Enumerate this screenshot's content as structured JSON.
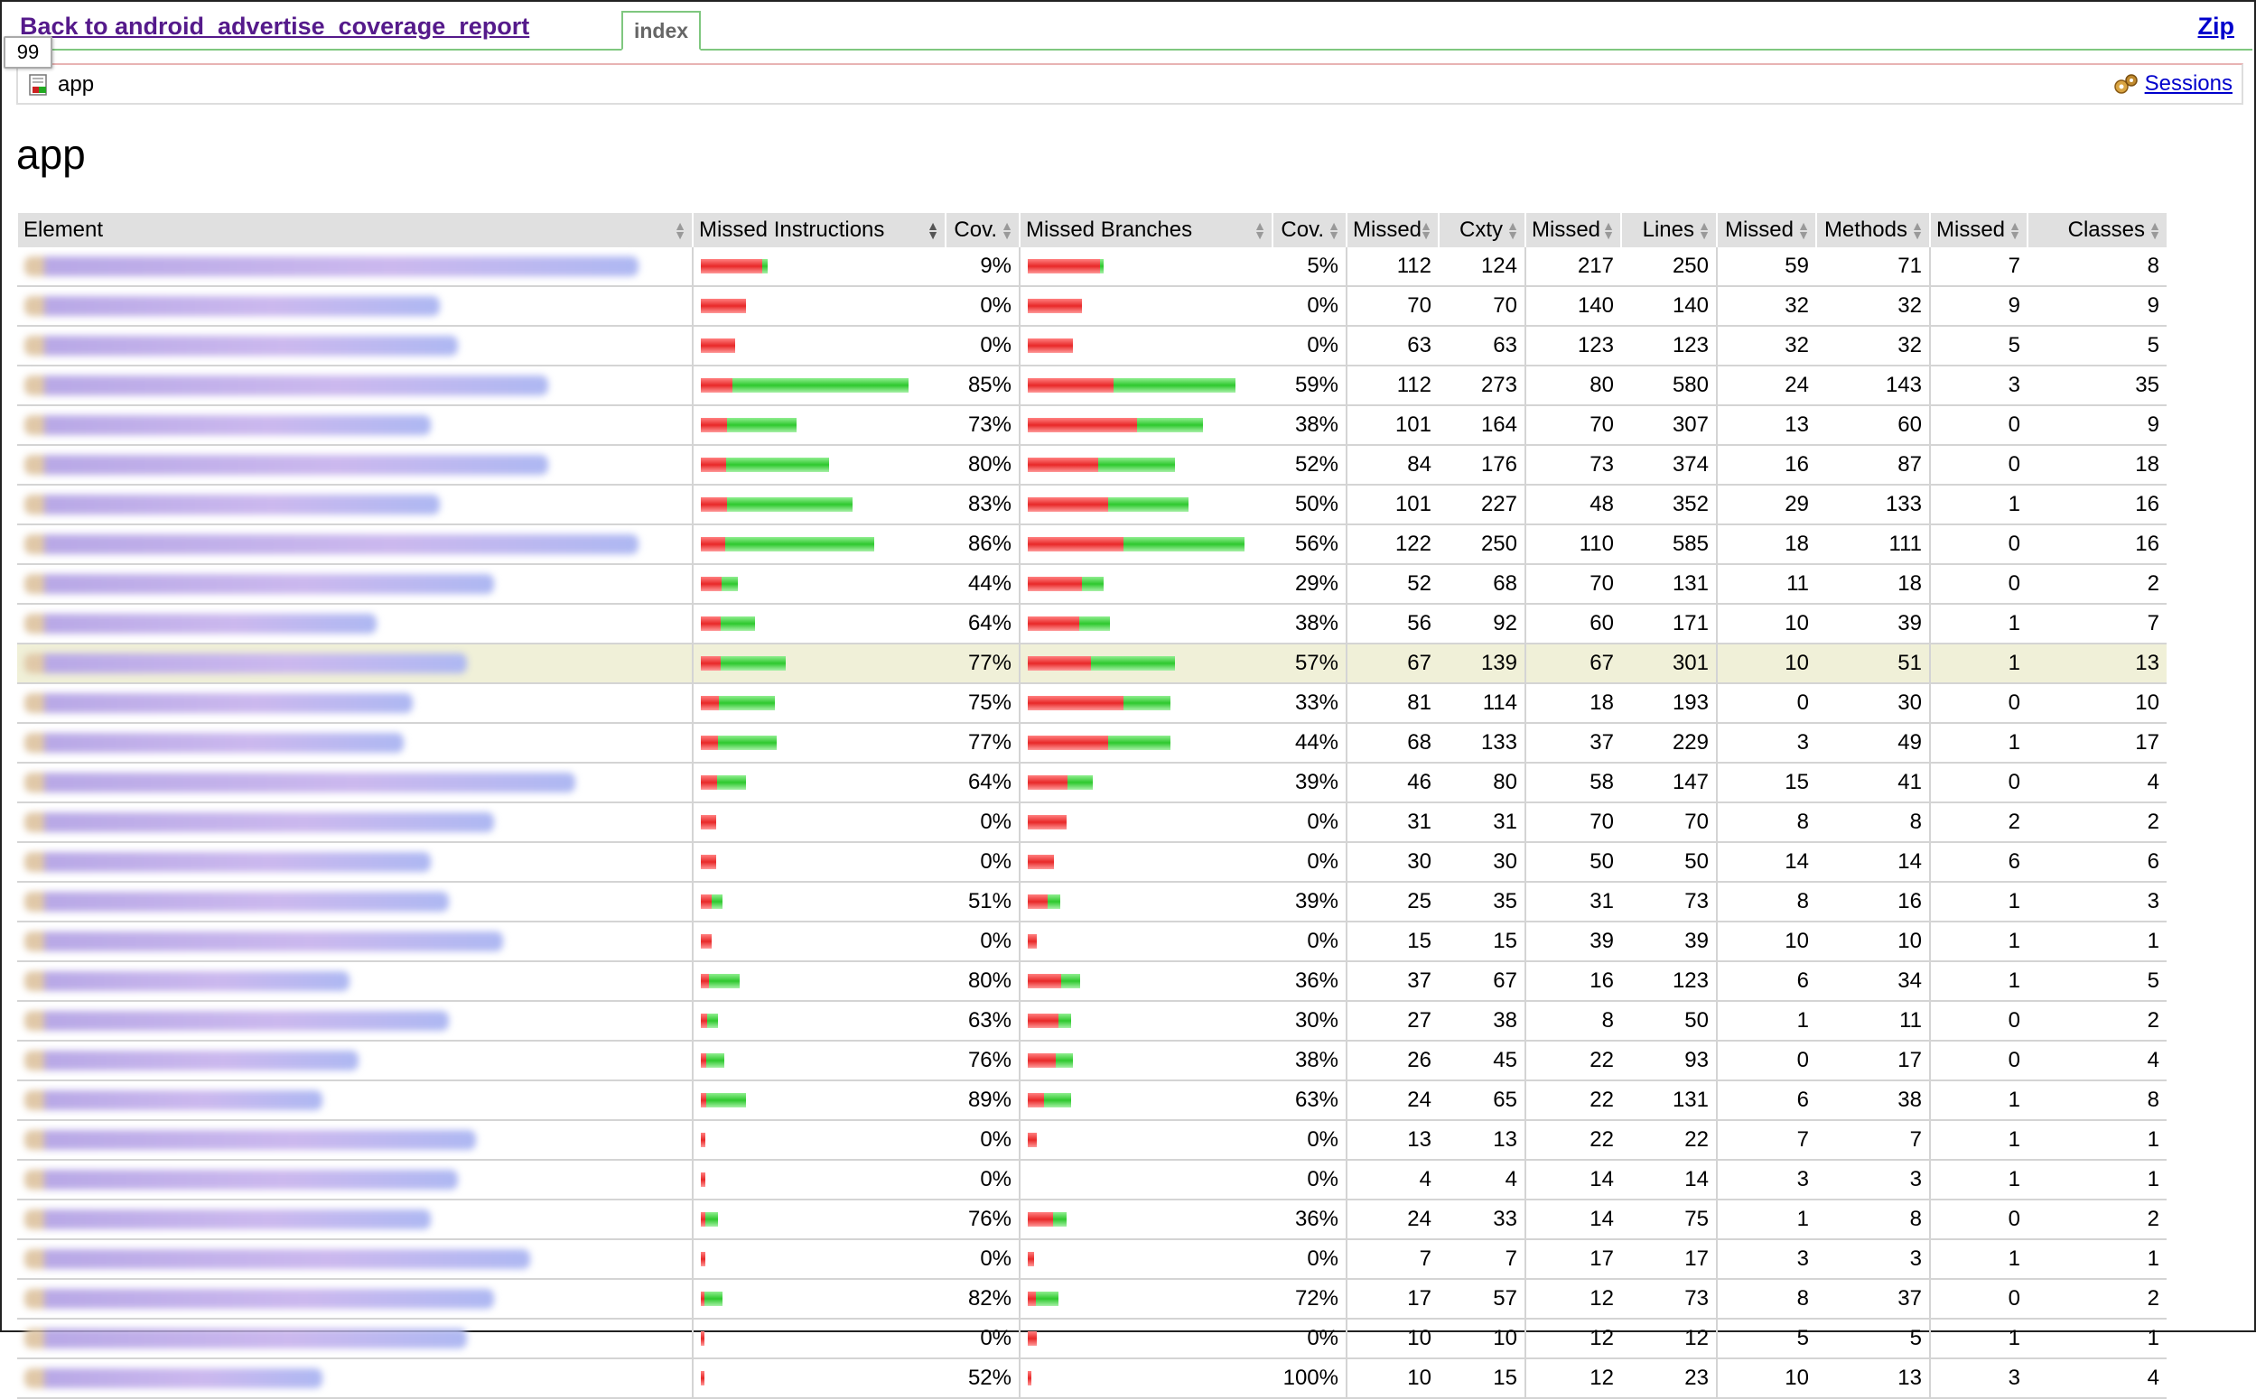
{
  "header": {
    "back_link": "Back to android_advertise_coverage_report",
    "tab": "index",
    "zip": "Zip",
    "tooltip": "99"
  },
  "breadcrumb": {
    "label": "app",
    "sessions": "Sessions"
  },
  "title": "app",
  "columns": [
    "Element",
    "Missed Instructions",
    "Cov.",
    "Missed Branches",
    "Cov.",
    "Missed",
    "Cxty",
    "Missed",
    "Lines",
    "Missed",
    "Methods",
    "Missed",
    "Classes"
  ],
  "icons": {
    "breadcrumb": "report-icon",
    "sessions": "sessions-icon",
    "sorted_column": "sort-down-icon"
  },
  "colors": {
    "missed": "#e82828",
    "covered": "#2ec82e",
    "highlight": "#f0f0d8"
  },
  "rows": [
    {
      "instr_missed": 0.91,
      "instr_total": 0.31,
      "instr_cov": "9%",
      "br_missed": 0.95,
      "br_total": 0.35,
      "br_cov": "5%",
      "cx_missed": "112",
      "cx": "124",
      "ln_missed": "217",
      "ln": "250",
      "mt_missed": "59",
      "mt": "71",
      "cl_missed": "7",
      "cl": "8"
    },
    {
      "instr_missed": 1.0,
      "instr_total": 0.21,
      "instr_cov": "0%",
      "br_missed": 1.0,
      "br_total": 0.25,
      "br_cov": "0%",
      "cx_missed": "70",
      "cx": "70",
      "ln_missed": "140",
      "ln": "140",
      "mt_missed": "32",
      "mt": "32",
      "cl_missed": "9",
      "cl": "9"
    },
    {
      "instr_missed": 1.0,
      "instr_total": 0.16,
      "instr_cov": "0%",
      "br_missed": 1.0,
      "br_total": 0.21,
      "br_cov": "0%",
      "cx_missed": "63",
      "cx": "63",
      "ln_missed": "123",
      "ln": "123",
      "mt_missed": "32",
      "mt": "32",
      "cl_missed": "5",
      "cl": "5"
    },
    {
      "instr_missed": 0.15,
      "instr_total": 0.96,
      "instr_cov": "85%",
      "br_missed": 0.41,
      "br_total": 0.96,
      "br_cov": "59%",
      "cx_missed": "112",
      "cx": "273",
      "ln_missed": "80",
      "ln": "580",
      "mt_missed": "24",
      "mt": "143",
      "cl_missed": "3",
      "cl": "35"
    },
    {
      "instr_missed": 0.27,
      "instr_total": 0.44,
      "instr_cov": "73%",
      "br_missed": 0.62,
      "br_total": 0.81,
      "br_cov": "38%",
      "cx_missed": "101",
      "cx": "164",
      "ln_missed": "70",
      "ln": "307",
      "mt_missed": "13",
      "mt": "60",
      "cl_missed": "0",
      "cl": "9"
    },
    {
      "instr_missed": 0.2,
      "instr_total": 0.59,
      "instr_cov": "80%",
      "br_missed": 0.48,
      "br_total": 0.68,
      "br_cov": "52%",
      "cx_missed": "84",
      "cx": "176",
      "ln_missed": "73",
      "ln": "374",
      "mt_missed": "16",
      "mt": "87",
      "cl_missed": "0",
      "cl": "18"
    },
    {
      "instr_missed": 0.17,
      "instr_total": 0.7,
      "instr_cov": "83%",
      "br_missed": 0.5,
      "br_total": 0.74,
      "br_cov": "50%",
      "cx_missed": "101",
      "cx": "227",
      "ln_missed": "48",
      "ln": "352",
      "mt_missed": "29",
      "mt": "133",
      "cl_missed": "1",
      "cl": "16"
    },
    {
      "instr_missed": 0.14,
      "instr_total": 0.8,
      "instr_cov": "86%",
      "br_missed": 0.44,
      "br_total": 1.0,
      "br_cov": "56%",
      "cx_missed": "122",
      "cx": "250",
      "ln_missed": "110",
      "ln": "585",
      "mt_missed": "18",
      "mt": "111",
      "cl_missed": "0",
      "cl": "16"
    },
    {
      "instr_missed": 0.56,
      "instr_total": 0.17,
      "instr_cov": "44%",
      "br_missed": 0.71,
      "br_total": 0.35,
      "br_cov": "29%",
      "cx_missed": "52",
      "cx": "68",
      "ln_missed": "70",
      "ln": "131",
      "mt_missed": "11",
      "mt": "18",
      "cl_missed": "0",
      "cl": "2"
    },
    {
      "instr_missed": 0.36,
      "instr_total": 0.25,
      "instr_cov": "64%",
      "br_missed": 0.62,
      "br_total": 0.38,
      "br_cov": "38%",
      "cx_missed": "56",
      "cx": "92",
      "ln_missed": "60",
      "ln": "171",
      "mt_missed": "10",
      "mt": "39",
      "cl_missed": "1",
      "cl": "7"
    },
    {
      "instr_missed": 0.23,
      "instr_total": 0.39,
      "instr_cov": "77%",
      "br_missed": 0.43,
      "br_total": 0.68,
      "br_cov": "57%",
      "cx_missed": "67",
      "cx": "139",
      "ln_missed": "67",
      "ln": "301",
      "mt_missed": "10",
      "mt": "51",
      "cl_missed": "1",
      "cl": "13",
      "highlight": true
    },
    {
      "instr_missed": 0.25,
      "instr_total": 0.34,
      "instr_cov": "75%",
      "br_missed": 0.67,
      "br_total": 0.66,
      "br_cov": "33%",
      "cx_missed": "81",
      "cx": "114",
      "ln_missed": "18",
      "ln": "193",
      "mt_missed": "0",
      "mt": "30",
      "cl_missed": "0",
      "cl": "10"
    },
    {
      "instr_missed": 0.23,
      "instr_total": 0.35,
      "instr_cov": "77%",
      "br_missed": 0.56,
      "br_total": 0.66,
      "br_cov": "44%",
      "cx_missed": "68",
      "cx": "133",
      "ln_missed": "37",
      "ln": "229",
      "mt_missed": "3",
      "mt": "49",
      "cl_missed": "1",
      "cl": "17"
    },
    {
      "instr_missed": 0.36,
      "instr_total": 0.21,
      "instr_cov": "64%",
      "br_missed": 0.61,
      "br_total": 0.3,
      "br_cov": "39%",
      "cx_missed": "46",
      "cx": "80",
      "ln_missed": "58",
      "ln": "147",
      "mt_missed": "15",
      "mt": "41",
      "cl_missed": "0",
      "cl": "4"
    },
    {
      "instr_missed": 1.0,
      "instr_total": 0.07,
      "instr_cov": "0%",
      "br_missed": 1.0,
      "br_total": 0.18,
      "br_cov": "0%",
      "cx_missed": "31",
      "cx": "31",
      "ln_missed": "70",
      "ln": "70",
      "mt_missed": "8",
      "mt": "8",
      "cl_missed": "2",
      "cl": "2"
    },
    {
      "instr_missed": 1.0,
      "instr_total": 0.07,
      "instr_cov": "0%",
      "br_missed": 1.0,
      "br_total": 0.12,
      "br_cov": "0%",
      "cx_missed": "30",
      "cx": "30",
      "ln_missed": "50",
      "ln": "50",
      "mt_missed": "14",
      "mt": "14",
      "cl_missed": "6",
      "cl": "6"
    },
    {
      "instr_missed": 0.49,
      "instr_total": 0.1,
      "instr_cov": "51%",
      "br_missed": 0.61,
      "br_total": 0.15,
      "br_cov": "39%",
      "cx_missed": "25",
      "cx": "35",
      "ln_missed": "31",
      "ln": "73",
      "mt_missed": "8",
      "mt": "16",
      "cl_missed": "1",
      "cl": "3"
    },
    {
      "instr_missed": 1.0,
      "instr_total": 0.05,
      "instr_cov": "0%",
      "br_missed": 1.0,
      "br_total": 0.04,
      "br_cov": "0%",
      "cx_missed": "15",
      "cx": "15",
      "ln_missed": "39",
      "ln": "39",
      "mt_missed": "10",
      "mt": "10",
      "cl_missed": "1",
      "cl": "1"
    },
    {
      "instr_missed": 0.2,
      "instr_total": 0.18,
      "instr_cov": "80%",
      "br_missed": 0.64,
      "br_total": 0.24,
      "br_cov": "36%",
      "cx_missed": "37",
      "cx": "67",
      "ln_missed": "16",
      "ln": "123",
      "mt_missed": "6",
      "mt": "34",
      "cl_missed": "1",
      "cl": "5"
    },
    {
      "instr_missed": 0.37,
      "instr_total": 0.08,
      "instr_cov": "63%",
      "br_missed": 0.7,
      "br_total": 0.2,
      "br_cov": "30%",
      "cx_missed": "27",
      "cx": "38",
      "ln_missed": "8",
      "ln": "50",
      "mt_missed": "1",
      "mt": "11",
      "cl_missed": "0",
      "cl": "2"
    },
    {
      "instr_missed": 0.24,
      "instr_total": 0.11,
      "instr_cov": "76%",
      "br_missed": 0.62,
      "br_total": 0.21,
      "br_cov": "38%",
      "cx_missed": "26",
      "cx": "45",
      "ln_missed": "22",
      "ln": "93",
      "mt_missed": "0",
      "mt": "17",
      "cl_missed": "0",
      "cl": "4"
    },
    {
      "instr_missed": 0.11,
      "instr_total": 0.21,
      "instr_cov": "89%",
      "br_missed": 0.37,
      "br_total": 0.2,
      "br_cov": "63%",
      "cx_missed": "24",
      "cx": "65",
      "ln_missed": "22",
      "ln": "131",
      "mt_missed": "6",
      "mt": "38",
      "cl_missed": "1",
      "cl": "8"
    },
    {
      "instr_missed": 1.0,
      "instr_total": 0.02,
      "instr_cov": "0%",
      "br_missed": 1.0,
      "br_total": 0.04,
      "br_cov": "0%",
      "cx_missed": "13",
      "cx": "13",
      "ln_missed": "22",
      "ln": "22",
      "mt_missed": "7",
      "mt": "7",
      "cl_missed": "1",
      "cl": "1"
    },
    {
      "instr_missed": 1.0,
      "instr_total": 0.02,
      "instr_cov": "0%",
      "br_missed": 1.0,
      "br_total": 0.0,
      "br_cov": "0%",
      "cx_missed": "4",
      "cx": "4",
      "ln_missed": "14",
      "ln": "14",
      "mt_missed": "3",
      "mt": "3",
      "cl_missed": "1",
      "cl": "1"
    },
    {
      "instr_missed": 0.24,
      "instr_total": 0.08,
      "instr_cov": "76%",
      "br_missed": 0.64,
      "br_total": 0.18,
      "br_cov": "36%",
      "cx_missed": "24",
      "cx": "33",
      "ln_missed": "14",
      "ln": "75",
      "mt_missed": "1",
      "mt": "8",
      "cl_missed": "0",
      "cl": "2"
    },
    {
      "instr_missed": 1.0,
      "instr_total": 0.02,
      "instr_cov": "0%",
      "br_missed": 1.0,
      "br_total": 0.03,
      "br_cov": "0%",
      "cx_missed": "7",
      "cx": "7",
      "ln_missed": "17",
      "ln": "17",
      "mt_missed": "3",
      "mt": "3",
      "cl_missed": "1",
      "cl": "1"
    },
    {
      "instr_missed": 0.18,
      "instr_total": 0.1,
      "instr_cov": "82%",
      "br_missed": 0.28,
      "br_total": 0.14,
      "br_cov": "72%",
      "cx_missed": "17",
      "cx": "57",
      "ln_missed": "12",
      "ln": "73",
      "mt_missed": "8",
      "mt": "37",
      "cl_missed": "0",
      "cl": "2"
    },
    {
      "instr_missed": 1.0,
      "instr_total": 0.01,
      "instr_cov": "0%",
      "br_missed": 1.0,
      "br_total": 0.04,
      "br_cov": "0%",
      "cx_missed": "10",
      "cx": "10",
      "ln_missed": "12",
      "ln": "12",
      "mt_missed": "5",
      "mt": "5",
      "cl_missed": "1",
      "cl": "1"
    },
    {
      "instr_missed": 0.48,
      "instr_total": 0.01,
      "instr_cov": "52%",
      "br_missed": 0.0,
      "br_total": 0.01,
      "br_cov": "100%",
      "cx_missed": "10",
      "cx": "15",
      "ln_missed": "12",
      "ln": "23",
      "mt_missed": "10",
      "mt": "13",
      "cl_missed": "3",
      "cl": "4"
    }
  ]
}
